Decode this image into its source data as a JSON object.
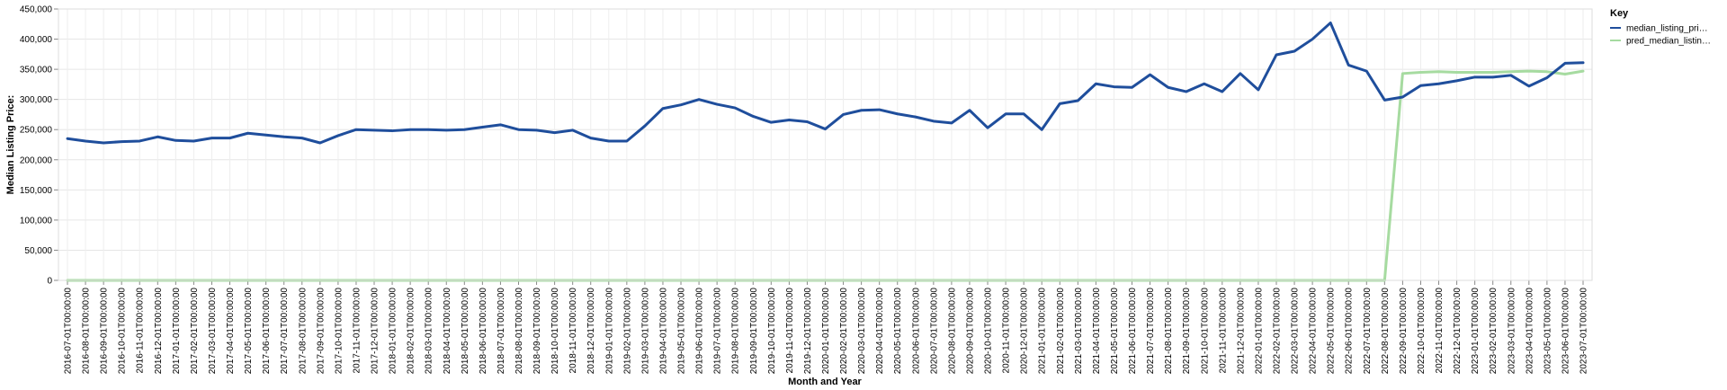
{
  "chart_data": {
    "type": "line",
    "xlabel": "Month and Year",
    "ylabel": "Median Listing Price:",
    "ylim": [
      0,
      450000
    ],
    "y_ticks": [
      0,
      50000,
      100000,
      150000,
      200000,
      250000,
      300000,
      350000,
      400000,
      450000
    ],
    "y_tick_labels": [
      "0",
      "50,000",
      "100,000",
      "150,000",
      "200,000",
      "250,000",
      "300,000",
      "350,000",
      "400,000",
      "450,000"
    ],
    "grid": true,
    "legend": {
      "title": "Key",
      "position": "right",
      "entries": [
        "median_listing_pri…",
        "pred_median_listin…"
      ]
    },
    "x": [
      "2016-07-01T00:00:00",
      "2016-08-01T00:00:00",
      "2016-09-01T00:00:00",
      "2016-10-01T00:00:00",
      "2016-11-01T00:00:00",
      "2016-12-01T00:00:00",
      "2017-01-01T00:00:00",
      "2017-02-01T00:00:00",
      "2017-03-01T00:00:00",
      "2017-04-01T00:00:00",
      "2017-05-01T00:00:00",
      "2017-06-01T00:00:00",
      "2017-07-01T00:00:00",
      "2017-08-01T00:00:00",
      "2017-09-01T00:00:00",
      "2017-10-01T00:00:00",
      "2017-11-01T00:00:00",
      "2017-12-01T00:00:00",
      "2018-01-01T00:00:00",
      "2018-02-01T00:00:00",
      "2018-03-01T00:00:00",
      "2018-04-01T00:00:00",
      "2018-05-01T00:00:00",
      "2018-06-01T00:00:00",
      "2018-07-01T00:00:00",
      "2018-08-01T00:00:00",
      "2018-09-01T00:00:00",
      "2018-10-01T00:00:00",
      "2018-11-01T00:00:00",
      "2018-12-01T00:00:00",
      "2019-01-01T00:00:00",
      "2019-02-01T00:00:00",
      "2019-03-01T00:00:00",
      "2019-04-01T00:00:00",
      "2019-05-01T00:00:00",
      "2019-06-01T00:00:00",
      "2019-07-01T00:00:00",
      "2019-08-01T00:00:00",
      "2019-09-01T00:00:00",
      "2019-10-01T00:00:00",
      "2019-11-01T00:00:00",
      "2019-12-01T00:00:00",
      "2020-01-01T00:00:00",
      "2020-02-01T00:00:00",
      "2020-03-01T00:00:00",
      "2020-04-01T00:00:00",
      "2020-05-01T00:00:00",
      "2020-06-01T00:00:00",
      "2020-07-01T00:00:00",
      "2020-08-01T00:00:00",
      "2020-09-01T00:00:00",
      "2020-10-01T00:00:00",
      "2020-11-01T00:00:00",
      "2020-12-01T00:00:00",
      "2021-01-01T00:00:00",
      "2021-02-01T00:00:00",
      "2021-03-01T00:00:00",
      "2021-04-01T00:00:00",
      "2021-05-01T00:00:00",
      "2021-06-01T00:00:00",
      "2021-07-01T00:00:00",
      "2021-08-01T00:00:00",
      "2021-09-01T00:00:00",
      "2021-10-01T00:00:00",
      "2021-11-01T00:00:00",
      "2021-12-01T00:00:00",
      "2022-01-01T00:00:00",
      "2022-02-01T00:00:00",
      "2022-03-01T00:00:00",
      "2022-04-01T00:00:00",
      "2022-05-01T00:00:00",
      "2022-06-01T00:00:00",
      "2022-07-01T00:00:00",
      "2022-08-01T00:00:00",
      "2022-09-01T00:00:00",
      "2022-10-01T00:00:00",
      "2022-11-01T00:00:00",
      "2022-12-01T00:00:00",
      "2023-01-01T00:00:00",
      "2023-02-01T00:00:00",
      "2023-03-01T00:00:00",
      "2023-04-01T00:00:00",
      "2023-05-01T00:00:00",
      "2023-06-01T00:00:00",
      "2023-07-01T00:00:00"
    ],
    "series": [
      {
        "name": "median_listing_pri…",
        "color": "#1f4e9c",
        "values": [
          235000,
          231000,
          228000,
          230000,
          231000,
          238000,
          232000,
          231000,
          236000,
          236000,
          244000,
          241000,
          238000,
          236000,
          228000,
          240000,
          250000,
          249000,
          248000,
          250000,
          250000,
          249000,
          250000,
          254000,
          258000,
          250000,
          249000,
          245000,
          249000,
          236000,
          231000,
          231000,
          256000,
          285000,
          291000,
          300000,
          292000,
          286000,
          272000,
          262000,
          266000,
          263000,
          251000,
          275000,
          282000,
          283000,
          276000,
          271000,
          264000,
          261000,
          282000,
          253000,
          276000,
          276000,
          250000,
          293000,
          298000,
          326000,
          321000,
          320000,
          341000,
          320000,
          313000,
          326000,
          313000,
          343000,
          316000,
          374000,
          380000,
          400000,
          427000,
          357000,
          347000,
          299000,
          304000,
          323000,
          326000,
          331000,
          337000,
          337000,
          340000,
          322000,
          336000,
          360000,
          361000
        ]
      },
      {
        "name": "pred_median_listin…",
        "color": "#a6dba0",
        "values": [
          0,
          0,
          0,
          0,
          0,
          0,
          0,
          0,
          0,
          0,
          0,
          0,
          0,
          0,
          0,
          0,
          0,
          0,
          0,
          0,
          0,
          0,
          0,
          0,
          0,
          0,
          0,
          0,
          0,
          0,
          0,
          0,
          0,
          0,
          0,
          0,
          0,
          0,
          0,
          0,
          0,
          0,
          0,
          0,
          0,
          0,
          0,
          0,
          0,
          0,
          0,
          0,
          0,
          0,
          0,
          0,
          0,
          0,
          0,
          0,
          0,
          0,
          0,
          0,
          0,
          0,
          0,
          0,
          0,
          0,
          0,
          0,
          0,
          0,
          343000,
          345000,
          346000,
          345000,
          345000,
          345000,
          346000,
          347000,
          346000,
          342000,
          347000
        ]
      }
    ]
  }
}
